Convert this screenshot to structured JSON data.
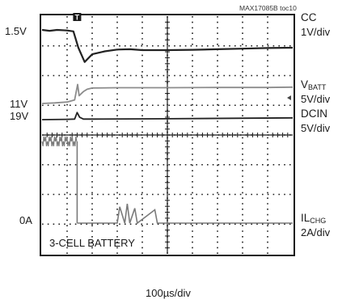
{
  "chart_data": {
    "type": "line",
    "figure_id": "MAX17085B toc10",
    "footer_label": "3-CELL BATTERY",
    "trigger_marker": "T",
    "x_scale": "100µs/div",
    "x_divisions": 10,
    "y_divisions": 8,
    "grid": true,
    "channels": [
      {
        "name": "CC",
        "sub": "",
        "scale": "1V/div",
        "level_label": "1.5V",
        "color": "#222222"
      },
      {
        "name": "V",
        "sub": "BATT",
        "scale": "5V/div",
        "level_label": "11V",
        "color": "#8c8c8c"
      },
      {
        "name": "DCIN",
        "sub": "",
        "scale": "5V/div",
        "level_label": "19V",
        "color": "#222222"
      },
      {
        "name": "IL",
        "sub": "CHG",
        "scale": "2A/div",
        "level_label": "0A",
        "color": "#7a7a7a"
      }
    ],
    "series": [
      {
        "name": "CC",
        "x": [
          0,
          0.3,
          0.6,
          1.0,
          1.25,
          1.45,
          1.7,
          2.0,
          2.5,
          3.0,
          3.5,
          4.0,
          5.0,
          6.0,
          7.0,
          8.0,
          9.0,
          10.0
        ],
        "y": [
          1.5,
          1.47,
          1.5,
          1.48,
          1.45,
          0.9,
          0.42,
          0.68,
          0.78,
          0.84,
          0.85,
          0.82,
          0.82,
          0.83,
          0.85,
          0.87,
          0.89,
          0.9
        ]
      },
      {
        "name": "V_BATT",
        "x": [
          0,
          0.5,
          1.0,
          1.3,
          1.42,
          1.48,
          1.55,
          1.65,
          1.8,
          2.0,
          3.0,
          5.0,
          7.0,
          9.0,
          10.0
        ],
        "y": [
          11,
          11.1,
          11.25,
          11.6,
          14.2,
          12.3,
          12.6,
          13.0,
          13.4,
          13.6,
          13.65,
          13.65,
          13.7,
          13.7,
          13.75
        ]
      },
      {
        "name": "DCIN",
        "x": [
          0,
          1.0,
          1.3,
          1.4,
          1.5,
          1.65,
          2.0,
          5.0,
          10.0
        ],
        "y": [
          19,
          19.05,
          19.1,
          20.2,
          19.4,
          19.1,
          19.1,
          19.15,
          19.3
        ]
      },
      {
        "name": "IL_CHG",
        "x": [
          0,
          1.4,
          1.42,
          3.0,
          3.1,
          3.3,
          3.4,
          3.5,
          3.7,
          3.8,
          4.5,
          4.6,
          10.0
        ],
        "y": [
          5.5,
          5.5,
          0,
          0,
          1.1,
          0,
          1.3,
          0,
          1.0,
          0,
          0.9,
          0,
          0
        ]
      }
    ]
  }
}
